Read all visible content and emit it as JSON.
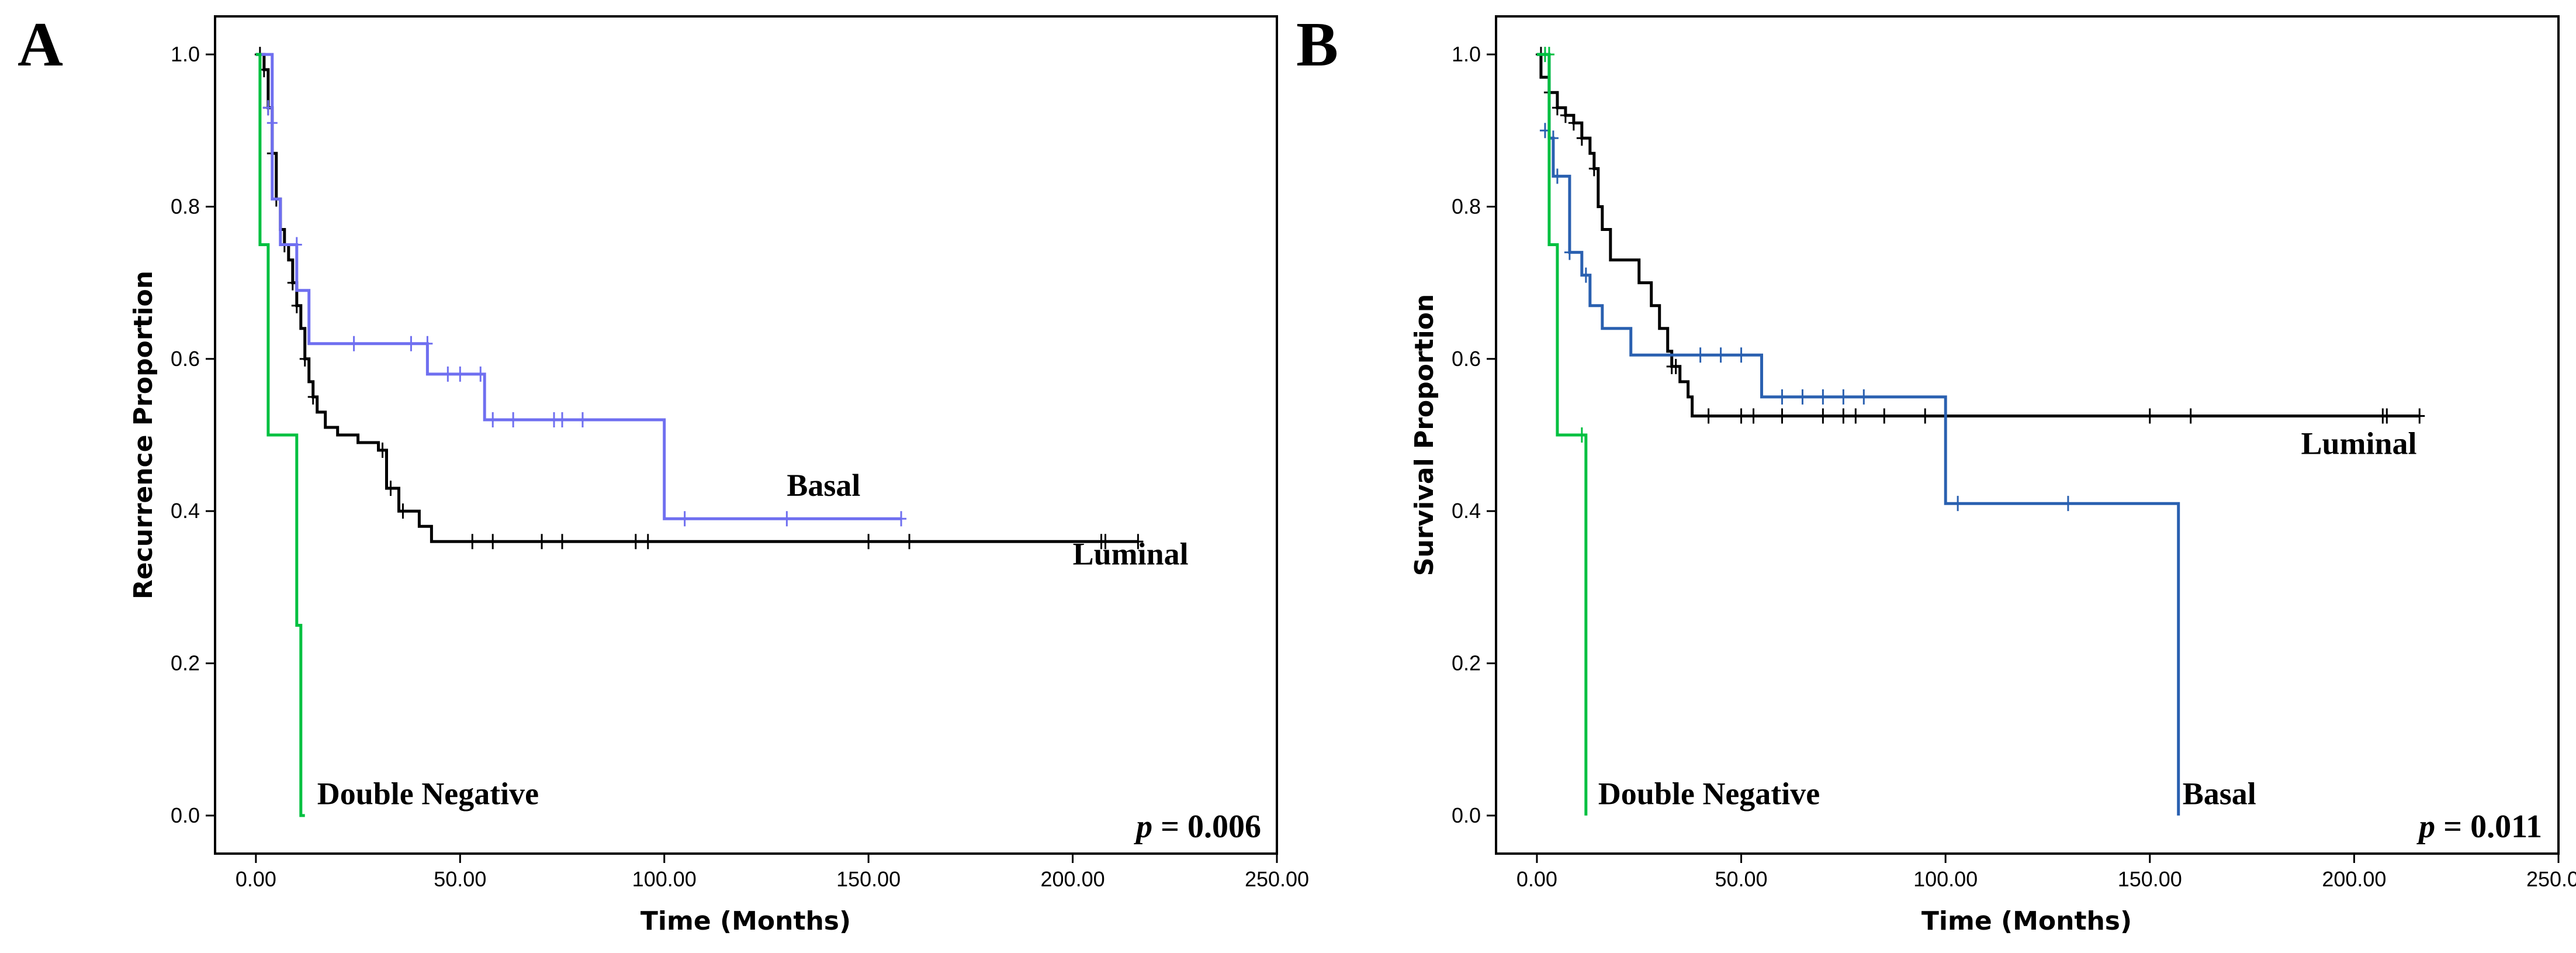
{
  "chart_data": [
    {
      "type": "line",
      "step": true,
      "panel": "A",
      "ylabel": "Recurrence Proportion",
      "xlabel": "Time (Months)",
      "xlim": [
        -10,
        250
      ],
      "ylim": [
        -0.05,
        1.05
      ],
      "x_ticks": [
        "0.00",
        "50.00",
        "100.00",
        "150.00",
        "200.00",
        "250.00"
      ],
      "y_ticks": [
        "0.0",
        "0.2",
        "0.4",
        "0.6",
        "0.8",
        "1.0"
      ],
      "grid": false,
      "p_prefix": "p",
      "p_value": " = 0.006",
      "series": [
        {
          "name": "Luminal",
          "color": "#000000",
          "label_at": [
            200,
            0.33
          ],
          "x": [
            0,
            2,
            3,
            4,
            5,
            6,
            7,
            8,
            9,
            10,
            11,
            12,
            13,
            14,
            15,
            17,
            20,
            25,
            30,
            32,
            35,
            40,
            43,
            216
          ],
          "y": [
            1.0,
            0.98,
            0.93,
            0.87,
            0.81,
            0.77,
            0.75,
            0.73,
            0.7,
            0.67,
            0.64,
            0.6,
            0.57,
            0.55,
            0.53,
            0.51,
            0.5,
            0.49,
            0.48,
            0.43,
            0.4,
            0.38,
            0.36,
            0.36
          ],
          "censor_x": [
            1,
            2,
            3,
            4,
            5,
            7,
            9,
            10,
            12,
            14,
            31,
            33,
            36,
            53,
            58,
            70,
            75,
            93,
            96,
            150,
            160,
            207,
            208,
            216
          ],
          "censor_y": [
            1.0,
            0.98,
            0.93,
            0.87,
            0.81,
            0.75,
            0.7,
            0.67,
            0.6,
            0.55,
            0.48,
            0.43,
            0.4,
            0.36,
            0.36,
            0.36,
            0.36,
            0.36,
            0.36,
            0.36,
            0.36,
            0.36,
            0.36,
            0.36
          ]
        },
        {
          "name": "Basal",
          "color": "#6f6ff0",
          "label_at": [
            130,
            0.42
          ],
          "x": [
            0,
            4,
            6,
            9,
            10,
            13,
            42,
            56,
            100,
            158
          ],
          "y": [
            1.0,
            0.81,
            0.75,
            0.75,
            0.69,
            0.62,
            0.58,
            0.52,
            0.39,
            0.39
          ],
          "censor_x": [
            3,
            4,
            10,
            24,
            38,
            42,
            47,
            50,
            55,
            58,
            63,
            73,
            75,
            80,
            105,
            130,
            158
          ],
          "censor_y": [
            0.93,
            0.91,
            0.75,
            0.62,
            0.62,
            0.62,
            0.58,
            0.58,
            0.58,
            0.52,
            0.52,
            0.52,
            0.52,
            0.52,
            0.39,
            0.39,
            0.39
          ]
        },
        {
          "name": "Double Negative",
          "color": "#00c040",
          "label_at": [
            15,
            0.015
          ],
          "x": [
            0,
            1,
            3,
            10,
            11,
            12
          ],
          "y": [
            1.0,
            0.75,
            0.5,
            0.25,
            0.0,
            0.0
          ],
          "censor_x": [],
          "censor_y": []
        }
      ]
    },
    {
      "type": "line",
      "step": true,
      "panel": "B",
      "ylabel": "Survival Proportion",
      "xlabel": "Time (Months)",
      "xlim": [
        -10,
        250
      ],
      "ylim": [
        -0.05,
        1.05
      ],
      "x_ticks": [
        "0.00",
        "50.00",
        "100.00",
        "150.00",
        "200.00",
        "250.00"
      ],
      "y_ticks": [
        "0.0",
        "0.2",
        "0.4",
        "0.6",
        "0.8",
        "1.0"
      ],
      "grid": false,
      "p_prefix": "p",
      "p_value": " = 0.011",
      "series": [
        {
          "name": "Luminal",
          "color": "#000000",
          "label_at": [
            187,
            0.475
          ],
          "x": [
            0,
            1,
            3,
            5,
            7,
            9,
            11,
            13,
            14,
            15,
            16,
            18,
            25,
            28,
            30,
            32,
            33,
            35,
            37,
            38,
            216
          ],
          "y": [
            1.0,
            0.97,
            0.95,
            0.93,
            0.92,
            0.91,
            0.89,
            0.87,
            0.85,
            0.8,
            0.77,
            0.73,
            0.7,
            0.67,
            0.64,
            0.61,
            0.59,
            0.57,
            0.55,
            0.525,
            0.525
          ],
          "censor_x": [
            1,
            3,
            5,
            7,
            9,
            11,
            14,
            33,
            34,
            42,
            50,
            53,
            60,
            70,
            75,
            78,
            85,
            95,
            100,
            150,
            160,
            207,
            208,
            216
          ],
          "censor_y": [
            1.0,
            0.95,
            0.93,
            0.92,
            0.91,
            0.89,
            0.85,
            0.59,
            0.59,
            0.525,
            0.525,
            0.525,
            0.525,
            0.525,
            0.525,
            0.525,
            0.525,
            0.525,
            0.525,
            0.525,
            0.525,
            0.525,
            0.525,
            0.525
          ]
        },
        {
          "name": "Basal",
          "color": "#2a60b0",
          "label_at": [
            158,
            0.015
          ],
          "x": [
            0,
            3,
            4,
            8,
            11,
            13,
            16,
            23,
            55,
            100,
            157
          ],
          "y": [
            1.0,
            0.89,
            0.84,
            0.74,
            0.71,
            0.67,
            0.64,
            0.605,
            0.55,
            0.41,
            0.0
          ],
          "censor_x": [
            2,
            4,
            5,
            8,
            12,
            40,
            45,
            50,
            60,
            65,
            70,
            75,
            80,
            103,
            130
          ],
          "censor_y": [
            0.9,
            0.89,
            0.84,
            0.74,
            0.71,
            0.605,
            0.605,
            0.605,
            0.55,
            0.55,
            0.55,
            0.55,
            0.55,
            0.41,
            0.41
          ]
        },
        {
          "name": "Double Negative",
          "color": "#00c040",
          "label_at": [
            15,
            0.015
          ],
          "x": [
            0,
            2,
            3,
            5,
            9,
            12
          ],
          "y": [
            1.0,
            1.0,
            0.75,
            0.5,
            0.5,
            0.0
          ],
          "censor_x": [
            2,
            3,
            11
          ],
          "censor_y": [
            1.0,
            1.0,
            0.5
          ]
        }
      ]
    }
  ]
}
